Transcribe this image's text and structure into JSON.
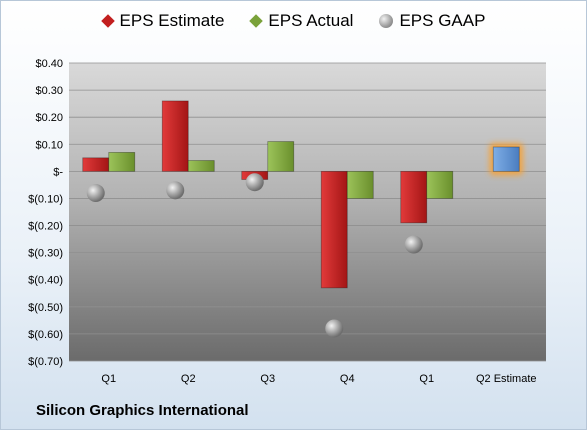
{
  "company_name": "Silicon Graphics International",
  "colors": {
    "estimate": "#c21f1f",
    "actual": "#7aa23a",
    "gaap": "#a6a6a6",
    "future_estimate": "#5a8fd0",
    "highlight": "#f5a33a"
  },
  "chart_data": {
    "type": "bar",
    "categories": [
      "Q1",
      "Q2",
      "Q3",
      "Q4",
      "Q1",
      "Q2 Estimate"
    ],
    "series": [
      {
        "name": "EPS Estimate",
        "kind": "bar",
        "values": [
          0.05,
          0.26,
          -0.03,
          -0.43,
          -0.19,
          null
        ]
      },
      {
        "name": "EPS Actual",
        "kind": "bar",
        "values": [
          0.07,
          0.04,
          0.11,
          -0.1,
          -0.1,
          null
        ]
      },
      {
        "name": "EPS GAAP",
        "kind": "marker",
        "values": [
          -0.08,
          -0.07,
          -0.04,
          -0.58,
          -0.27,
          null
        ]
      },
      {
        "name": "",
        "kind": "bar-highlight",
        "values": [
          null,
          null,
          null,
          null,
          null,
          0.09
        ]
      }
    ],
    "ylim": [
      -0.7,
      0.4
    ],
    "yticks": [
      0.4,
      0.3,
      0.2,
      0.1,
      0.0,
      -0.1,
      -0.2,
      -0.3,
      -0.4,
      -0.5,
      -0.6,
      -0.7
    ],
    "ytick_labels": [
      "$0.40",
      "$0.30",
      "$0.20",
      "$0.10",
      "$-",
      "$(0.10)",
      "$(0.20)",
      "$(0.30)",
      "$(0.40)",
      "$(0.50)",
      "$(0.60)",
      "$(0.70)"
    ],
    "grid": true,
    "legend_position": "top",
    "title": "",
    "xlabel": "",
    "ylabel": ""
  }
}
